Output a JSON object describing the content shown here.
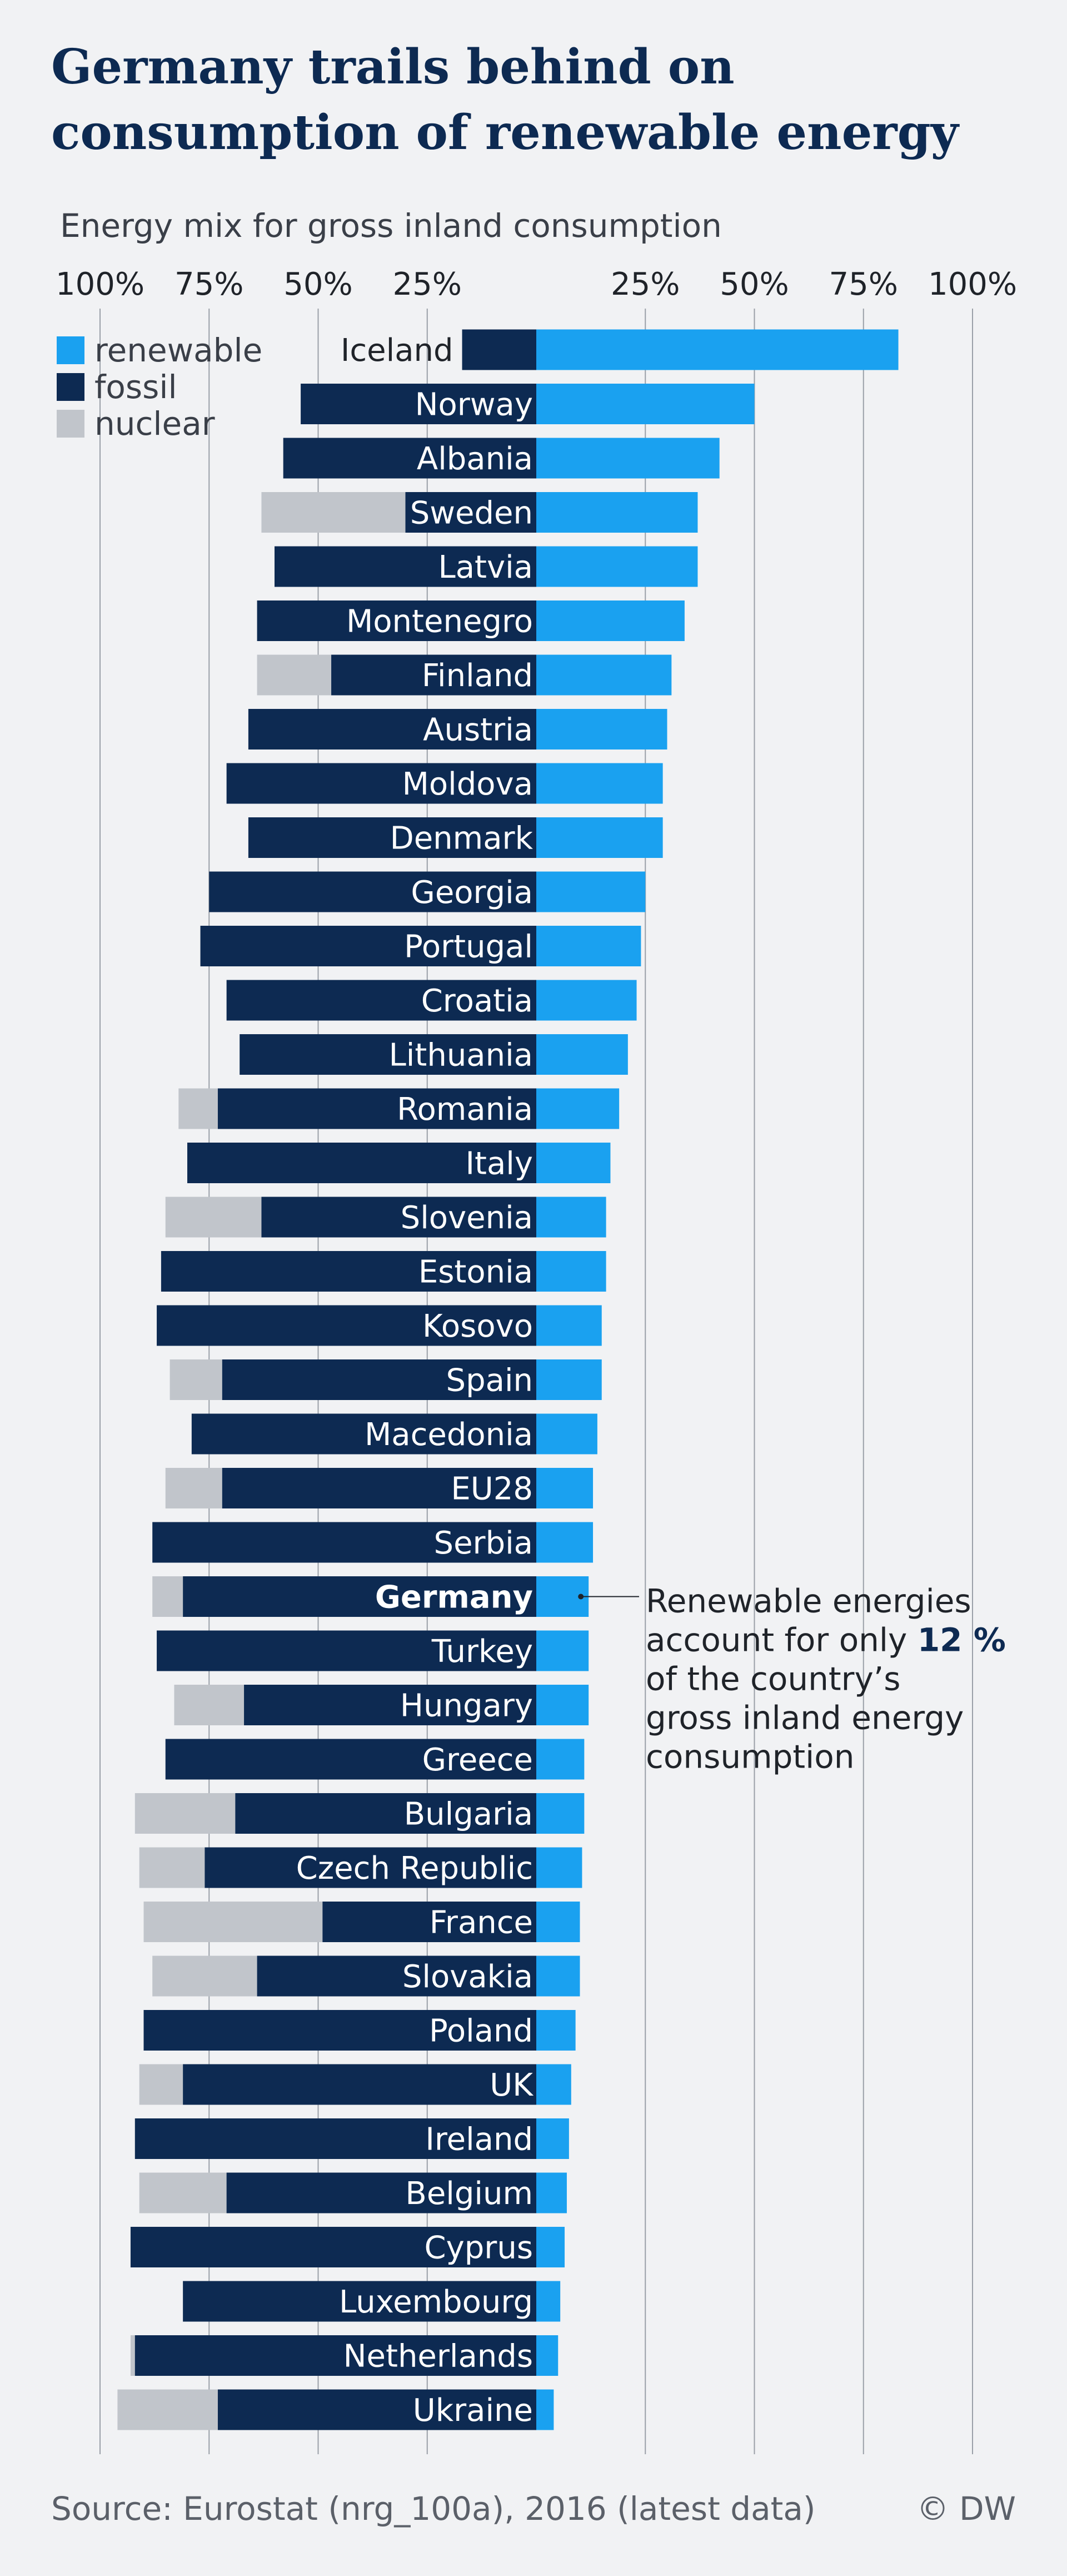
{
  "title": "Germany trails behind on consumption of renewable energy",
  "subtitle": "Energy mix for gross inland consumption",
  "source": "Source: Eurostat (nrg_100a), 2016 (latest data)",
  "credit": "© DW",
  "colors": {
    "renewable": "#1aa1f0",
    "fossil": "#0d2a52",
    "nuclear": "#c1c5cb",
    "gridline": "#9aa0a8",
    "text": "#1f2329"
  },
  "chart_data": {
    "type": "bar",
    "orientation": "horizontal-diverging",
    "left_axis_ticks": [
      "100%",
      "75%",
      "50%",
      "25%"
    ],
    "right_axis_ticks": [
      "25%",
      "50%",
      "75%",
      "100%"
    ],
    "left_axis_values": [
      100,
      75,
      50,
      25
    ],
    "right_axis_values": [
      25,
      50,
      75,
      100
    ],
    "unit": "%",
    "legend_position": "top-left",
    "series": [
      {
        "key": "renewable",
        "name": "renewable"
      },
      {
        "key": "fossil",
        "name": "fossil"
      },
      {
        "key": "nuclear",
        "name": "nuclear"
      }
    ],
    "categories": [
      "Iceland",
      "Norway",
      "Albania",
      "Sweden",
      "Latvia",
      "Montenegro",
      "Finland",
      "Austria",
      "Moldova",
      "Denmark",
      "Georgia",
      "Portugal",
      "Croatia",
      "Lithuania",
      "Romania",
      "Italy",
      "Slovenia",
      "Estonia",
      "Kosovo",
      "Spain",
      "Macedonia",
      "EU28",
      "Serbia",
      "Germany",
      "Turkey",
      "Hungary",
      "Greece",
      "Bulgaria",
      "Czech Republic",
      "France",
      "Slovakia",
      "Poland",
      "UK",
      "Ireland",
      "Belgium",
      "Cyprus",
      "Luxembourg",
      "Netherlands",
      "Ukraine"
    ],
    "renewable": [
      83,
      50,
      42,
      37,
      37,
      34,
      31,
      30,
      29,
      29,
      25,
      24,
      23,
      21,
      19,
      17,
      16,
      16,
      15,
      15,
      14,
      13,
      13,
      12,
      12,
      12,
      11,
      11,
      10.5,
      10,
      10,
      9,
      8,
      7.5,
      7,
      6.5,
      5.5,
      5,
      4
    ],
    "fossil": [
      17,
      54,
      58,
      30,
      60,
      64,
      47,
      66,
      71,
      66,
      75,
      77,
      71,
      68,
      73,
      80,
      63,
      86,
      87,
      72,
      79,
      72,
      88,
      81,
      87,
      67,
      85,
      69,
      76,
      49,
      64,
      90,
      81,
      92,
      71,
      93,
      81,
      92,
      73
    ],
    "nuclear": [
      0,
      0,
      0,
      33,
      0,
      0,
      17,
      0,
      0,
      0,
      0,
      0,
      0,
      0,
      9,
      0,
      22,
      0,
      0,
      12,
      0,
      13,
      0,
      7,
      0,
      16,
      0,
      23,
      15,
      41,
      24,
      0,
      10,
      0,
      20,
      0,
      0,
      1,
      23
    ],
    "highlight": "Germany",
    "annotation": {
      "target": "Germany",
      "text_before": "Renewable energies account for only ",
      "text_bold": "12 %",
      "text_after": " of the country’s gross inland energy consumption"
    }
  }
}
